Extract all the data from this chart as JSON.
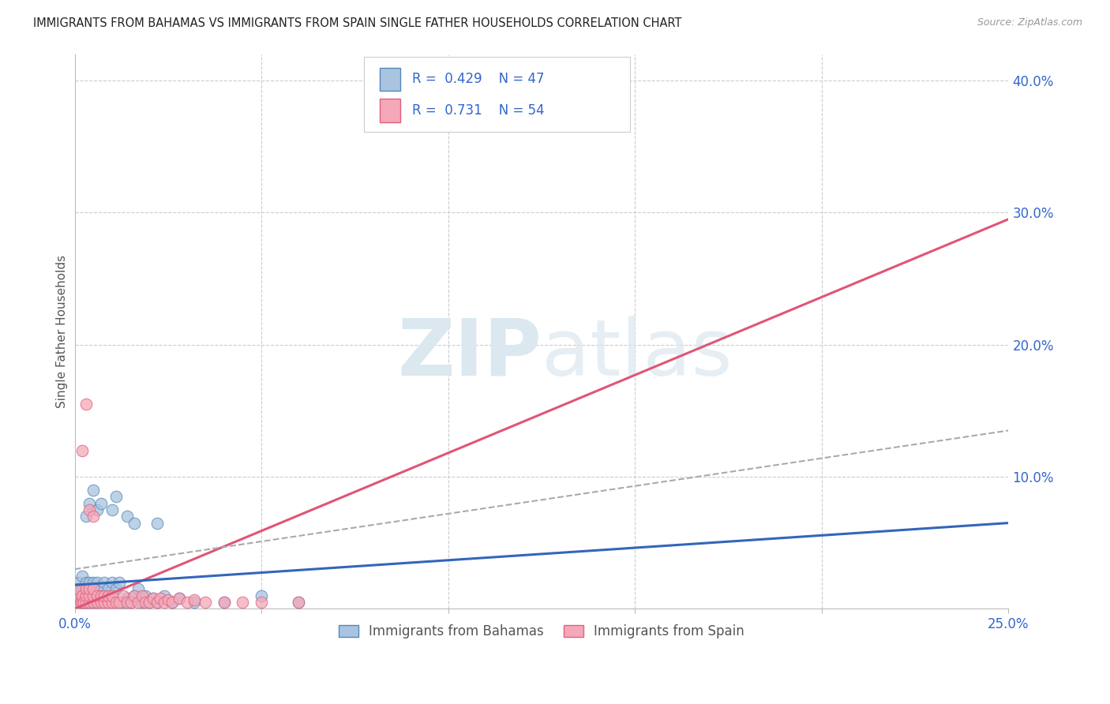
{
  "title": "IMMIGRANTS FROM BAHAMAS VS IMMIGRANTS FROM SPAIN SINGLE FATHER HOUSEHOLDS CORRELATION CHART",
  "source": "Source: ZipAtlas.com",
  "ylabel": "Single Father Households",
  "legend_blue_R": "0.429",
  "legend_blue_N": "47",
  "legend_pink_R": "0.731",
  "legend_pink_N": "54",
  "xlim": [
    0.0,
    0.25
  ],
  "ylim": [
    0.0,
    0.42
  ],
  "x_ticks": [
    0.0,
    0.05,
    0.1,
    0.15,
    0.2,
    0.25
  ],
  "y_ticks_right": [
    0.1,
    0.2,
    0.3,
    0.4
  ],
  "y_tick_labels_right": [
    "10.0%",
    "20.0%",
    "30.0%",
    "40.0%"
  ],
  "grid_color": "#cccccc",
  "background_color": "#ffffff",
  "blue_scatter_face": "#a8c4e0",
  "blue_scatter_edge": "#5588bb",
  "pink_scatter_face": "#f4a8b8",
  "pink_scatter_edge": "#e06080",
  "bahamas_x": [
    0.0005,
    0.001,
    0.001,
    0.0015,
    0.002,
    0.002,
    0.002,
    0.003,
    0.003,
    0.003,
    0.003,
    0.004,
    0.004,
    0.004,
    0.005,
    0.005,
    0.005,
    0.005,
    0.006,
    0.006,
    0.006,
    0.007,
    0.007,
    0.008,
    0.008,
    0.009,
    0.009,
    0.01,
    0.011,
    0.012,
    0.013,
    0.014,
    0.015,
    0.016,
    0.017,
    0.018,
    0.019,
    0.02,
    0.021,
    0.022,
    0.024,
    0.026,
    0.028,
    0.032,
    0.04,
    0.05,
    0.06
  ],
  "bahamas_y": [
    0.01,
    0.015,
    0.02,
    0.01,
    0.005,
    0.015,
    0.025,
    0.005,
    0.01,
    0.015,
    0.02,
    0.005,
    0.01,
    0.02,
    0.005,
    0.01,
    0.015,
    0.02,
    0.005,
    0.01,
    0.02,
    0.01,
    0.015,
    0.01,
    0.02,
    0.01,
    0.015,
    0.02,
    0.015,
    0.02,
    0.005,
    0.008,
    0.005,
    0.01,
    0.015,
    0.005,
    0.01,
    0.005,
    0.008,
    0.005,
    0.01,
    0.005,
    0.008,
    0.005,
    0.005,
    0.01,
    0.005
  ],
  "bahamas_extra_x": [
    0.003,
    0.004,
    0.005,
    0.006,
    0.007,
    0.01,
    0.011,
    0.014,
    0.016,
    0.022
  ],
  "bahamas_extra_y": [
    0.07,
    0.08,
    0.09,
    0.075,
    0.08,
    0.075,
    0.085,
    0.07,
    0.065,
    0.065
  ],
  "spain_x": [
    0.0005,
    0.001,
    0.001,
    0.0015,
    0.002,
    0.002,
    0.0025,
    0.003,
    0.003,
    0.003,
    0.004,
    0.004,
    0.004,
    0.005,
    0.005,
    0.005,
    0.006,
    0.006,
    0.007,
    0.007,
    0.008,
    0.008,
    0.009,
    0.009,
    0.01,
    0.01,
    0.011,
    0.012,
    0.013,
    0.014,
    0.015,
    0.016,
    0.017,
    0.018,
    0.019,
    0.02,
    0.021,
    0.022,
    0.023,
    0.024,
    0.025,
    0.026,
    0.028,
    0.03,
    0.032,
    0.035,
    0.04,
    0.045,
    0.05,
    0.06,
    0.002,
    0.003,
    0.004,
    0.005
  ],
  "spain_y": [
    0.005,
    0.01,
    0.015,
    0.005,
    0.005,
    0.01,
    0.005,
    0.005,
    0.01,
    0.015,
    0.005,
    0.01,
    0.015,
    0.005,
    0.01,
    0.015,
    0.005,
    0.01,
    0.005,
    0.01,
    0.005,
    0.01,
    0.005,
    0.01,
    0.005,
    0.01,
    0.005,
    0.005,
    0.01,
    0.005,
    0.005,
    0.01,
    0.005,
    0.01,
    0.005,
    0.005,
    0.008,
    0.005,
    0.008,
    0.005,
    0.007,
    0.005,
    0.008,
    0.005,
    0.007,
    0.005,
    0.005,
    0.005,
    0.005,
    0.005,
    0.12,
    0.155,
    0.075,
    0.07
  ],
  "bahamas_trend_x": [
    0.0,
    0.25
  ],
  "bahamas_trend_y": [
    0.018,
    0.065
  ],
  "spain_trend_x": [
    0.0,
    0.25
  ],
  "spain_trend_y": [
    0.0,
    0.295
  ],
  "dashed_trend_x": [
    0.0,
    0.25
  ],
  "dashed_trend_y": [
    0.03,
    0.135
  ]
}
